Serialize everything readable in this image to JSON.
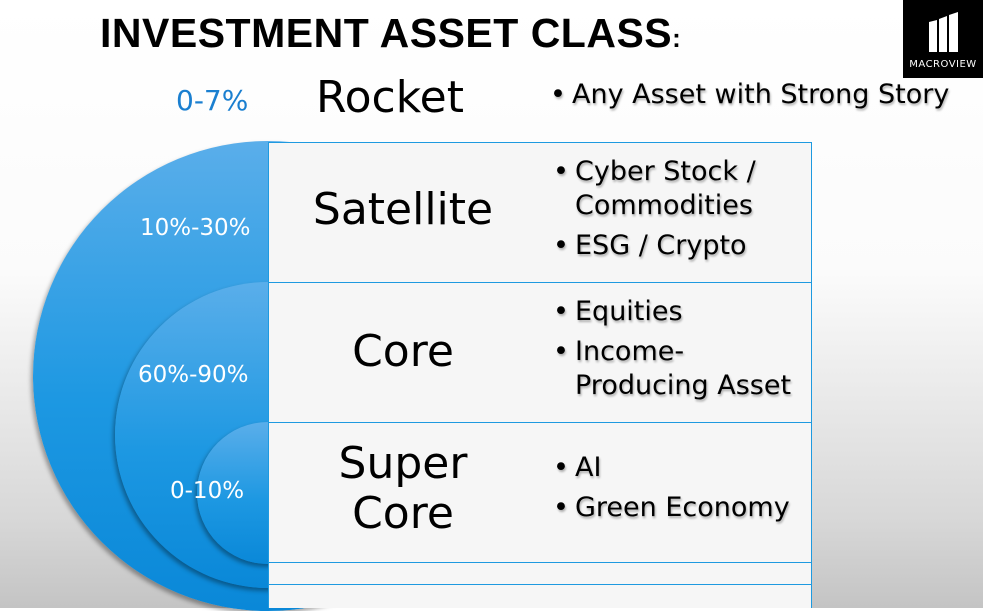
{
  "title": "INVESTMENT ASSET CLASS",
  "title_colon": ":",
  "logo_text": "MacroView",
  "rocket": {
    "pct": "0-7%",
    "label": "Rocket",
    "bullets": [
      "Any Asset with Strong Story"
    ]
  },
  "rows": [
    {
      "pct": "10%-30%",
      "label": "Satellite",
      "bullets": [
        "Cyber Stock / Commodities",
        "ESG / Crypto"
      ]
    },
    {
      "pct": "60%-90%",
      "label": "Core",
      "bullets": [
        "Equities",
        "Income-Producing Asset"
      ]
    },
    {
      "pct": "0-10%",
      "label": "Super Core",
      "bullets": [
        "AI",
        "Green Economy"
      ]
    }
  ],
  "colors": {
    "accent": "#1e9ae0",
    "pct_text": "#1a7fd0"
  }
}
